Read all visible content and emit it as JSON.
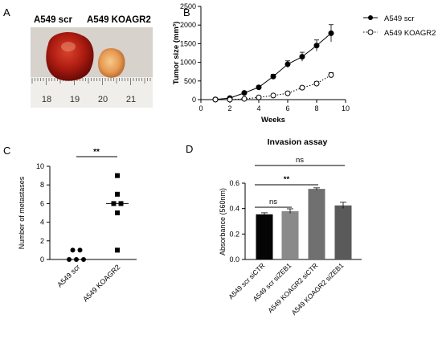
{
  "panels": {
    "A": {
      "letter": "A",
      "label_scr": "A549 scr",
      "label_ko": "A549 KOAGR2",
      "ruler_ticks": [
        "18",
        "19",
        "20",
        "21"
      ]
    },
    "B": {
      "letter": "B"
    },
    "C": {
      "letter": "C"
    },
    "D": {
      "letter": "D"
    }
  },
  "chart_data": [
    {
      "panel": "B",
      "type": "line",
      "title": "",
      "xlabel": "Weeks",
      "ylabel": "Tumor size (mm³)",
      "xlim": [
        0,
        10
      ],
      "ylim": [
        0,
        2500
      ],
      "xticks": [
        "0",
        "2",
        "4",
        "6",
        "8",
        "10"
      ],
      "yticks": [
        "0",
        "500",
        "1000",
        "1500",
        "2000",
        "2500"
      ],
      "legend_position": "top-right",
      "series": [
        {
          "name": "A549 scr",
          "marker": "filled-circle",
          "line": "solid",
          "x": [
            1,
            2,
            3,
            4,
            5,
            6,
            7,
            8,
            9
          ],
          "y": [
            5,
            40,
            180,
            330,
            620,
            950,
            1150,
            1450,
            1780
          ],
          "err": [
            0,
            10,
            30,
            40,
            60,
            90,
            120,
            150,
            230
          ]
        },
        {
          "name": "A549 KOAGR2",
          "marker": "open-circle",
          "line": "dotted",
          "x": [
            1,
            2,
            3,
            4,
            5,
            6,
            7,
            8,
            9
          ],
          "y": [
            0,
            0,
            20,
            60,
            110,
            170,
            320,
            430,
            660
          ],
          "err": [
            0,
            0,
            5,
            10,
            20,
            30,
            40,
            50,
            60
          ]
        }
      ]
    },
    {
      "panel": "C",
      "type": "scatter",
      "title": "",
      "xlabel": "",
      "ylabel": "Number of metastases",
      "ylim": [
        0,
        10
      ],
      "yticks": [
        "0",
        "2",
        "4",
        "6",
        "8",
        "10"
      ],
      "categories": [
        "A549 scr",
        "A549 KOAGR2"
      ],
      "significance": "**",
      "groups": [
        {
          "category": "A549 scr",
          "marker": "circle",
          "points": [
            0,
            0,
            1,
            1,
            0
          ],
          "median": 0
        },
        {
          "category": "A549 KOAGR2",
          "marker": "square",
          "points": [
            9,
            7,
            6,
            5,
            6,
            1
          ],
          "median": 6
        }
      ]
    },
    {
      "panel": "D",
      "type": "bar",
      "title": "Invasion assay",
      "xlabel": "",
      "ylabel": "Absorbance (560nm)",
      "ylim": [
        0,
        0.6
      ],
      "yticks": [
        "0.0",
        "0.2",
        "0.4",
        "0.6"
      ],
      "categories": [
        "A549 scr siCTR",
        "A549 scr siZEB1",
        "A549 KOAGR2 siCTR",
        "A549 KOAGR2 siZEB1"
      ],
      "values": [
        0.355,
        0.38,
        0.555,
        0.425
      ],
      "errors": [
        0.012,
        0.018,
        0.008,
        0.025
      ],
      "colors": [
        "#050505",
        "#8a8a8a",
        "#707070",
        "#5a5a5a"
      ],
      "significance": [
        {
          "from": 0,
          "to": 1,
          "label": "ns"
        },
        {
          "from": 0,
          "to": 2,
          "label": "**"
        },
        {
          "from": 0,
          "to": 3,
          "label": "ns"
        }
      ]
    }
  ]
}
